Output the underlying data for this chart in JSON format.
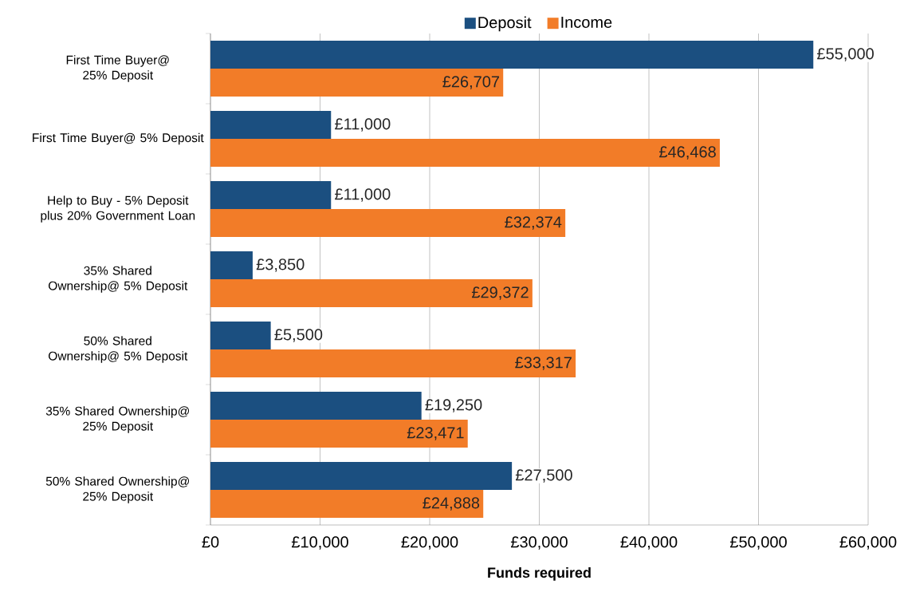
{
  "chart_data": {
    "type": "bar",
    "orientation": "horizontal",
    "xlabel": "Funds required",
    "categories": [
      "First Time Buyer@ 25% Deposit",
      "First Time Buyer@ 5% Deposit",
      "Help to Buy - 5% Deposit plus 20% Government Loan",
      "35% Shared Ownership@ 5% Deposit",
      "50% Shared Ownership@ 5% Deposit",
      "35% Shared Ownership@ 25% Deposit",
      "50% Shared Ownership@ 25% Deposit"
    ],
    "series": [
      {
        "name": "Deposit",
        "color": "#1b4f80",
        "values": [
          55000,
          11000,
          11000,
          3850,
          5500,
          19250,
          27500
        ],
        "value_labels": [
          "£55,000",
          "£11,000",
          "£11,000",
          "£3,850",
          "£5,500",
          "£19,250",
          "£27,500"
        ]
      },
      {
        "name": "Income",
        "color": "#f27c28",
        "values": [
          26707,
          46468,
          32374,
          29372,
          33317,
          23471,
          24888
        ],
        "value_labels": [
          "£26,707",
          "£46,468",
          "£32,374",
          "£29,372",
          "£33,317",
          "£23,471",
          "£24,888"
        ]
      }
    ],
    "xlim": [
      0,
      60000
    ],
    "xticks": [
      {
        "value": 0,
        "label": "£0"
      },
      {
        "value": 10000,
        "label": "£10,000"
      },
      {
        "value": 20000,
        "label": "£20,000"
      },
      {
        "value": 30000,
        "label": "£30,000"
      },
      {
        "value": 40000,
        "label": "£40,000"
      },
      {
        "value": 50000,
        "label": "£50,000"
      },
      {
        "value": 60000,
        "label": "£60,000"
      }
    ],
    "grid": "x",
    "legend": "top"
  }
}
